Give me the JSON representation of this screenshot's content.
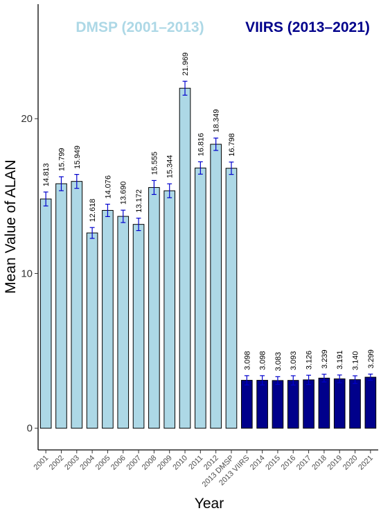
{
  "chart_data": {
    "type": "bar",
    "xlabel": "Year",
    "ylabel": "Mean Value of ALAN",
    "ylim": [
      -1.4,
      27.4
    ],
    "yticks": [
      0,
      10,
      20
    ],
    "ytick_labels": [
      "0",
      "10",
      "20"
    ],
    "grid": false,
    "annotations": [
      {
        "text": "DMSP (2001–2013)",
        "series": "DMSP"
      },
      {
        "text": "VIIRS (2013–2021)",
        "series": "VIIRS"
      }
    ],
    "categories": [
      "2001",
      "2002",
      "2003",
      "2004",
      "2005",
      "2006",
      "2007",
      "2008",
      "2009",
      "2010",
      "2011",
      "2012",
      "2013 DMSP",
      "2013 VIIRS",
      "2014",
      "2015",
      "2016",
      "2017",
      "2018",
      "2019",
      "2020",
      "2021"
    ],
    "values": [
      14.813,
      15.799,
      15.949,
      12.618,
      14.076,
      13.69,
      13.172,
      15.555,
      15.344,
      21.969,
      16.816,
      18.349,
      16.798,
      3.098,
      3.098,
      3.083,
      3.093,
      3.126,
      3.239,
      3.191,
      3.14,
      3.299
    ],
    "value_labels": [
      "14.813",
      "15.799",
      "15.949",
      "12.618",
      "14.076",
      "13.690",
      "13.172",
      "15.555",
      "15.344",
      "21.969",
      "16.816",
      "18.349",
      "16.798",
      "3.098",
      "3.098",
      "3.083",
      "3.093",
      "3.126",
      "3.239",
      "3.191",
      "3.140",
      "3.299"
    ],
    "errors": [
      0.45,
      0.45,
      0.45,
      0.35,
      0.4,
      0.4,
      0.4,
      0.45,
      0.45,
      0.45,
      0.4,
      0.4,
      0.4,
      0.3,
      0.3,
      0.25,
      0.3,
      0.3,
      0.25,
      0.25,
      0.25,
      0.2
    ],
    "groups": [
      "DMSP",
      "DMSP",
      "DMSP",
      "DMSP",
      "DMSP",
      "DMSP",
      "DMSP",
      "DMSP",
      "DMSP",
      "DMSP",
      "DMSP",
      "DMSP",
      "DMSP",
      "VIIRS",
      "VIIRS",
      "VIIRS",
      "VIIRS",
      "VIIRS",
      "VIIRS",
      "VIIRS",
      "VIIRS",
      "VIIRS"
    ],
    "colors": {
      "DMSP": "#add8e6",
      "VIIRS": "#00008b",
      "error_bar": "#0000cd",
      "bar_outline": "#000000"
    }
  }
}
